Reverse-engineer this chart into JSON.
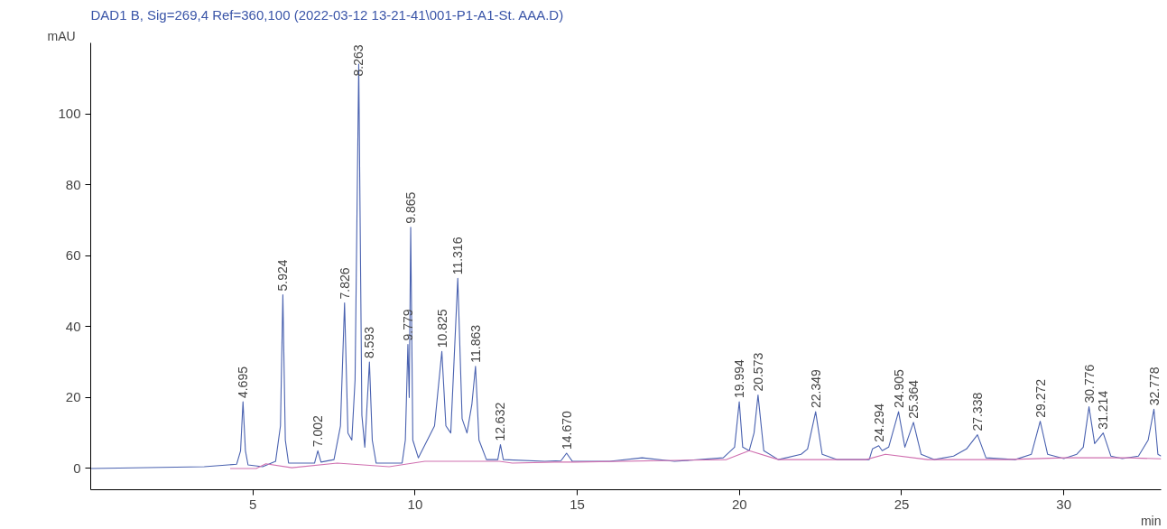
{
  "chart_data": {
    "type": "line",
    "title": "DAD1 B, Sig=269,4 Ref=360,100 (2022-03-12 13-21-41\\001-P1-A1-St. AAA.D)",
    "xlabel": "min",
    "ylabel": "mAU",
    "xlim": [
      0,
      33
    ],
    "ylim": [
      -6,
      120
    ],
    "xticks": [
      5,
      10,
      15,
      20,
      25,
      30
    ],
    "yticks": [
      0,
      20,
      40,
      60,
      80,
      100
    ],
    "grid": false,
    "marker": "none",
    "line_style": "solid",
    "series": [
      {
        "color": "#4a62b0",
        "x": [
          0,
          3.5,
          4.5,
          4.62,
          4.695,
          4.77,
          4.85,
          5.3,
          5.7,
          5.85,
          5.924,
          6.0,
          6.1,
          6.9,
          7.002,
          7.1,
          7.5,
          7.7,
          7.826,
          7.93,
          8.05,
          8.15,
          8.263,
          8.36,
          8.45,
          8.52,
          8.593,
          8.68,
          8.8,
          9.6,
          9.7,
          9.779,
          9.82,
          9.865,
          9.93,
          10.1,
          10.6,
          10.825,
          10.95,
          11.1,
          11.2,
          11.316,
          11.45,
          11.6,
          11.75,
          11.863,
          11.97,
          12.2,
          12.55,
          12.632,
          12.72,
          14.0,
          14.5,
          14.67,
          14.85,
          16,
          17,
          18,
          19.5,
          19.85,
          19.994,
          20.1,
          20.3,
          20.45,
          20.573,
          20.75,
          21.2,
          21.9,
          22.1,
          22.349,
          22.55,
          23,
          24,
          24.1,
          24.294,
          24.4,
          24.6,
          24.905,
          25.1,
          25.364,
          25.6,
          26,
          26.6,
          27.0,
          27.338,
          27.6,
          28.5,
          29.0,
          29.272,
          29.5,
          30,
          30.4,
          30.6,
          30.776,
          30.95,
          31.214,
          31.45,
          31.8,
          32.3,
          32.6,
          32.778,
          32.9,
          33
        ],
        "values": [
          0,
          0.5,
          1.2,
          5,
          18.8,
          5,
          1,
          0.5,
          2,
          12,
          49,
          8,
          1.5,
          1.5,
          5,
          1.8,
          2.5,
          12,
          46.7,
          10,
          8,
          25,
          114,
          15,
          6,
          18,
          30,
          8,
          1.5,
          1.5,
          8,
          35,
          20,
          68,
          8,
          3,
          12,
          33,
          12,
          10,
          30,
          53.6,
          14,
          10,
          18,
          28.8,
          8,
          2.5,
          2.5,
          6.7,
          2.5,
          2,
          2.2,
          4.3,
          2,
          2,
          3,
          2,
          3,
          6,
          18.8,
          6,
          5,
          10,
          20.7,
          5,
          2.5,
          4,
          5.5,
          16,
          4,
          2.5,
          2.5,
          5.5,
          6.4,
          5,
          6,
          16,
          6,
          13,
          4,
          2.5,
          3.5,
          5.5,
          9.5,
          3,
          2.5,
          4,
          13.3,
          4,
          2.8,
          4,
          6,
          17.4,
          7,
          10,
          3.5,
          2.8,
          3.5,
          8,
          16.7,
          4,
          3.5
        ]
      },
      {
        "color": "#d070b0",
        "x": [
          4.3,
          5.1,
          5.4,
          6.2,
          7.6,
          9.2,
          10.3,
          12.6,
          13.0,
          14.3,
          14.9,
          19.6,
          20.3,
          21.2,
          23.9,
          24.5,
          25.8,
          28.2,
          30,
          32,
          33
        ],
        "values": [
          0,
          0,
          1.3,
          0.2,
          1.5,
          0.5,
          2,
          2,
          1.5,
          1.8,
          1.8,
          2.5,
          5,
          2.5,
          2.5,
          4,
          2.5,
          2.5,
          3,
          3,
          2.7
        ]
      }
    ],
    "annotations": [
      {
        "text": "4.695",
        "x": 4.695,
        "y": 18.8
      },
      {
        "text": "5.924",
        "x": 5.924,
        "y": 49
      },
      {
        "text": "7.002",
        "x": 7.002,
        "y": 5
      },
      {
        "text": "7.826",
        "x": 7.826,
        "y": 46.7
      },
      {
        "text": "8.263",
        "x": 8.263,
        "y": 114
      },
      {
        "text": "8.593",
        "x": 8.593,
        "y": 30
      },
      {
        "text": "9.779",
        "x": 9.779,
        "y": 35
      },
      {
        "text": "9.865",
        "x": 9.865,
        "y": 68
      },
      {
        "text": "10.825",
        "x": 10.825,
        "y": 33
      },
      {
        "text": "11.316",
        "x": 11.316,
        "y": 53.6
      },
      {
        "text": "11.863",
        "x": 11.863,
        "y": 28.8
      },
      {
        "text": "12.632",
        "x": 12.632,
        "y": 6.7
      },
      {
        "text": "14.670",
        "x": 14.67,
        "y": 4.3
      },
      {
        "text": "19.994",
        "x": 19.994,
        "y": 18.8
      },
      {
        "text": "20.573",
        "x": 20.573,
        "y": 20.7
      },
      {
        "text": "22.349",
        "x": 22.349,
        "y": 16
      },
      {
        "text": "24.294",
        "x": 24.294,
        "y": 6.4
      },
      {
        "text": "24.905",
        "x": 24.905,
        "y": 16
      },
      {
        "text": "25.364",
        "x": 25.364,
        "y": 13
      },
      {
        "text": "27.338",
        "x": 27.338,
        "y": 9.5
      },
      {
        "text": "29.272",
        "x": 29.272,
        "y": 13.3
      },
      {
        "text": "30.776",
        "x": 30.776,
        "y": 17.4
      },
      {
        "text": "31.214",
        "x": 31.214,
        "y": 10
      },
      {
        "text": "32.778",
        "x": 32.778,
        "y": 16.7
      }
    ]
  }
}
